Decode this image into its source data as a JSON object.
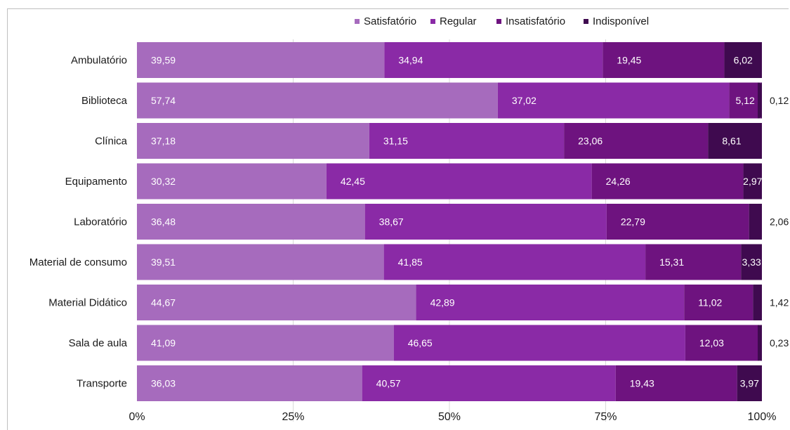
{
  "chart_data": {
    "type": "bar",
    "orientation": "horizontal",
    "stacked": "percent",
    "categories": [
      "Ambulatório",
      "Biblioteca",
      "Clínica",
      "Equipamento",
      "Laboratório",
      "Material de consumo",
      "Material Didático",
      "Sala de aula",
      "Transporte"
    ],
    "series": [
      {
        "name": "Satisfatório",
        "color": "#a66bbd",
        "values": [
          39.59,
          57.74,
          37.18,
          30.32,
          36.48,
          39.51,
          44.67,
          41.09,
          36.03
        ],
        "labels": [
          "39,59",
          "57,74",
          "37,18",
          "30,32",
          "36,48",
          "39,51",
          "44,67",
          "41,09",
          "36,03"
        ]
      },
      {
        "name": "Regular",
        "color": "#8a2aa6",
        "values": [
          34.94,
          37.02,
          31.15,
          42.45,
          38.67,
          41.85,
          42.89,
          46.65,
          40.57
        ],
        "labels": [
          "34,94",
          "37,02",
          "31,15",
          "42,45",
          "38,67",
          "41,85",
          "42,89",
          "46,65",
          "40,57"
        ]
      },
      {
        "name": "Insatisfatório",
        "color": "#6e137f",
        "values": [
          19.45,
          5.12,
          23.06,
          24.26,
          22.79,
          15.31,
          11.02,
          12.03,
          19.43
        ],
        "labels": [
          "19,45",
          "5,12",
          "23,06",
          "24,26",
          "22,79",
          "15,31",
          "11,02",
          "12,03",
          "19,43"
        ]
      },
      {
        "name": "Indisponível",
        "color": "#3f0a4f",
        "values": [
          6.02,
          0.12,
          8.61,
          2.97,
          2.06,
          3.33,
          1.42,
          0.23,
          3.97
        ],
        "labels": [
          "6,02",
          "0,12",
          "8,61",
          "2,97",
          "2,06",
          "3,33",
          "1,42",
          "0,23",
          "3,97"
        ]
      }
    ],
    "xaxis": {
      "ticks": [
        "0%",
        "25%",
        "50%",
        "75%",
        "100%"
      ],
      "range": [
        0,
        100
      ]
    },
    "legend": {
      "position": "top"
    },
    "grid": true
  }
}
